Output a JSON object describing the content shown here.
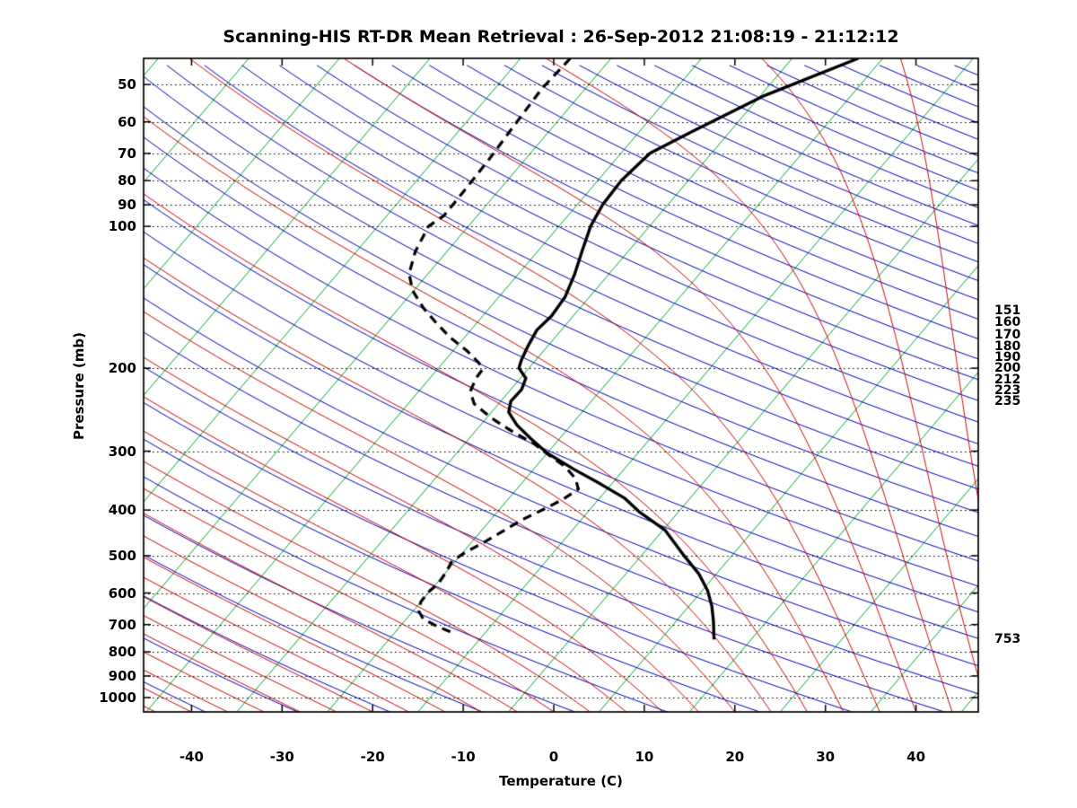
{
  "chart_data": {
    "type": "line",
    "subtype": "skew-t-log-p-sounding",
    "title": "Scanning-HIS RT-DR Mean Retrieval : 26-Sep-2012 21:08:19 - 21:12:12",
    "xlabel": "Temperature (C)",
    "ylabel": "Pressure (mb)",
    "x_ticks": [
      -40,
      -30,
      -20,
      -10,
      0,
      10,
      20,
      30,
      40
    ],
    "pressure_ticks": [
      50,
      60,
      70,
      80,
      90,
      100,
      200,
      300,
      400,
      500,
      600,
      700,
      800,
      900,
      1000
    ],
    "pressure_range_mb": [
      44,
      1073
    ],
    "right_pressure_labels": [
      151,
      160,
      170,
      180,
      190,
      200,
      212,
      223,
      235,
      753
    ],
    "grid": "dotted-horizontal-at-pressure-ticks",
    "legend": "none",
    "colors": {
      "frame": "#000000",
      "background": "#ffffff",
      "isotherm": "#00a830",
      "dry_adiabat": "#0000bb",
      "moist_adiabat": "#cc0000",
      "profile": "#000000",
      "grid_dotted": "#000000"
    },
    "series": [
      {
        "name": "temperature_profile",
        "style": "solid",
        "width": 3.4,
        "points_p_t": [
          [
            44,
            -27.7
          ],
          [
            53,
            -34.7
          ],
          [
            63,
            -39.2
          ],
          [
            70,
            -41.8
          ],
          [
            80,
            -42.4
          ],
          [
            90,
            -42.2
          ],
          [
            100,
            -41.5
          ],
          [
            113,
            -40.1
          ],
          [
            126,
            -38.8
          ],
          [
            141,
            -37.7
          ],
          [
            155,
            -37.4
          ],
          [
            166,
            -37.7
          ],
          [
            179,
            -37.2
          ],
          [
            192,
            -36.6
          ],
          [
            200,
            -36.1
          ],
          [
            210,
            -34.4
          ],
          [
            222,
            -33.8
          ],
          [
            235,
            -33.9
          ],
          [
            248,
            -33.1
          ],
          [
            264,
            -31.0
          ],
          [
            282,
            -28.2
          ],
          [
            303,
            -25.0
          ],
          [
            328,
            -20.5
          ],
          [
            353,
            -16.1
          ],
          [
            377,
            -12.3
          ],
          [
            403,
            -9.4
          ],
          [
            441,
            -4.8
          ],
          [
            501,
            -0.2
          ],
          [
            547,
            3.1
          ],
          [
            593,
            5.6
          ],
          [
            639,
            7.5
          ],
          [
            688,
            9.1
          ],
          [
            753,
            10.9
          ]
        ]
      },
      {
        "name": "dewpoint_profile",
        "style": "dashed",
        "width": 3.2,
        "points_p_t": [
          [
            44,
            -59.5
          ],
          [
            51,
            -59.8
          ],
          [
            61,
            -59.4
          ],
          [
            72,
            -59.0
          ],
          [
            84,
            -58.8
          ],
          [
            95,
            -58.7
          ],
          [
            100,
            -59.4
          ],
          [
            113,
            -58.5
          ],
          [
            126,
            -57.1
          ],
          [
            137,
            -55.1
          ],
          [
            149,
            -52.3
          ],
          [
            159,
            -49.8
          ],
          [
            172,
            -46.6
          ],
          [
            184,
            -43.4
          ],
          [
            195,
            -41.0
          ],
          [
            201,
            -40.0
          ],
          [
            210,
            -39.9
          ],
          [
            224,
            -39.3
          ],
          [
            238,
            -37.7
          ],
          [
            255,
            -34.5
          ],
          [
            272,
            -31.0
          ],
          [
            289,
            -27.4
          ],
          [
            306,
            -24.6
          ],
          [
            324,
            -21.7
          ],
          [
            343,
            -19.5
          ],
          [
            361,
            -18.2
          ],
          [
            379,
            -18.9
          ],
          [
            398,
            -20.1
          ],
          [
            419,
            -21.5
          ],
          [
            444,
            -22.6
          ],
          [
            468,
            -23.6
          ],
          [
            491,
            -24.7
          ],
          [
            513,
            -25.4
          ],
          [
            543,
            -25.0
          ],
          [
            572,
            -24.8
          ],
          [
            598,
            -25.1
          ],
          [
            627,
            -25.0
          ],
          [
            655,
            -24.4
          ],
          [
            682,
            -23.1
          ],
          [
            706,
            -20.9
          ],
          [
            731,
            -18.4
          ]
        ]
      }
    ],
    "background_lines": {
      "isotherms": {
        "t_start": -115,
        "t_end": 45,
        "t_step": 10
      },
      "dry_adiabats": {
        "theta_k_start": 220,
        "theta_k_end": 630,
        "theta_k_step": 10
      },
      "moist_adiabats": {
        "surface_t_start": -64,
        "surface_t_end": 64,
        "surface_t_step": 4
      }
    }
  }
}
